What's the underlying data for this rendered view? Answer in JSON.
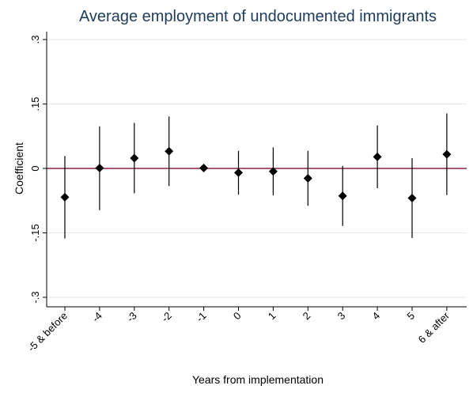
{
  "chart_data": {
    "type": "scatter",
    "title": "Average employment of undocumented immigrants",
    "xlabel": "Years from implementation",
    "ylabel": "Coefficient",
    "categories": [
      "-5 & before",
      "-4",
      "-3",
      "-2",
      "-1",
      "0",
      "1",
      "2",
      "3",
      "4",
      "5",
      "6 & after"
    ],
    "y_ticks": [
      0.3,
      0.15,
      0,
      -0.15,
      -0.3
    ],
    "y_tick_labels": [
      ".3",
      ".15",
      "0",
      "-.15",
      "-.3"
    ],
    "ylim": [
      -0.3,
      0.3
    ],
    "grid": true,
    "series": [
      {
        "values": [
          -0.067,
          0.001,
          0.024,
          0.04,
          0.001,
          -0.01,
          -0.007,
          -0.023,
          -0.064,
          0.027,
          -0.069,
          0.033
        ],
        "ci_low": [
          -0.163,
          -0.097,
          -0.058,
          -0.041,
          -0.001,
          -0.061,
          -0.063,
          -0.087,
          -0.134,
          -0.046,
          -0.162,
          -0.062
        ],
        "ci_high": [
          0.029,
          0.098,
          0.106,
          0.121,
          0.003,
          0.041,
          0.049,
          0.041,
          0.006,
          0.1,
          0.024,
          0.128
        ]
      }
    ],
    "colors": {
      "title": "#1e3c5a",
      "markers": "#000000",
      "zero_line": "#8b2040",
      "grid": "#e6e6e6"
    }
  }
}
